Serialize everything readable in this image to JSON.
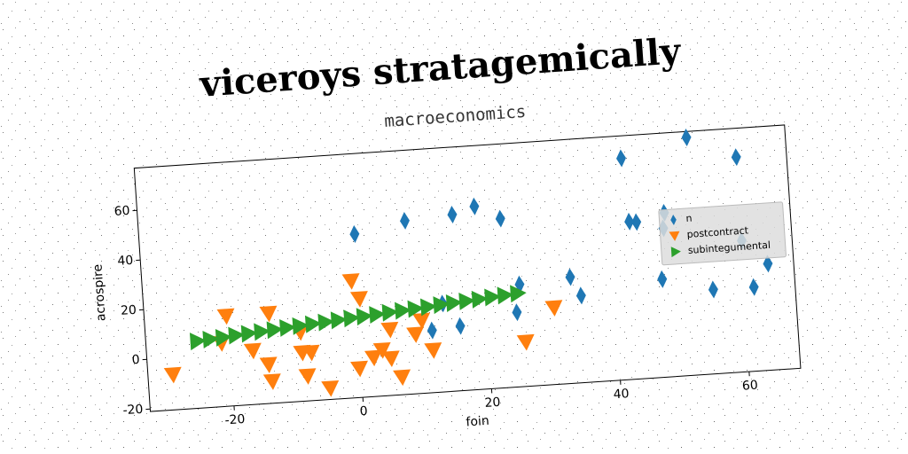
{
  "chart_data": {
    "type": "scatter",
    "title": "viceroys stratagemically",
    "subtitle": "macroeconomics",
    "xlabel": "foin",
    "ylabel": "acrospire",
    "xlim": [
      -33,
      68
    ],
    "ylim": [
      -21,
      77
    ],
    "xticks": [
      -20,
      0,
      20,
      40,
      60
    ],
    "yticks": [
      -20,
      0,
      20,
      40,
      60
    ],
    "grid": false,
    "legend": "center right",
    "series": [
      {
        "name": "n",
        "color": "#1f77b4",
        "marker": "diamond",
        "x": [
          0.4,
          8.3,
          15.7,
          19.2,
          23.1,
          25.4,
          24.7,
          15.8,
          11.4,
          13.3,
          33.3,
          34.8,
          42.4,
          52.7,
          60.2,
          43,
          44.1,
          48.5,
          48.2,
          47.5,
          55.3,
          60.2,
          61.6,
          64
        ],
        "values": [
          44.7,
          48.7,
          49.9,
          52.6,
          47,
          20.1,
          9,
          5,
          4,
          14.5,
          21.7,
          14,
          68,
          74.6,
          65.4,
          42.4,
          42,
          45,
          38.8,
          18.4,
          12.9,
          31.8,
          12.8,
          21.8
        ]
      },
      {
        "name": "postcontract",
        "color": "#ff7f0e",
        "marker": "triangle-down",
        "x": [
          -29.1,
          -20.3,
          -21.3,
          -16.5,
          -13.7,
          -14.2,
          -13.8,
          -9,
          -8.9,
          -8.3,
          -7.5,
          -4.9,
          -0.6,
          0.5,
          -0.2,
          2.1,
          3.5,
          4.9,
          4.8,
          6.3,
          8.8,
          9.9,
          11.4,
          25.8,
          30.5
        ],
        "values": [
          -6.8,
          15.3,
          4.6,
          0.7,
          15.2,
          -5.3,
          -12.1,
          6.9,
          -1.4,
          -10.9,
          -1.6,
          -16.4,
          26,
          18.7,
          -9.3,
          -5.3,
          -2.5,
          5.5,
          -6.1,
          -13.9,
          2.9,
          8.3,
          -3.9,
          -3.1,
          9.9
        ]
      },
      {
        "name": "subintegumental",
        "color": "#2ca02c",
        "marker": "triangle-right",
        "x": [
          -25,
          -23,
          -21,
          -19,
          -17,
          -15,
          -13,
          -11,
          -9,
          -7,
          -5,
          -3,
          -1,
          1,
          3,
          5,
          7,
          9,
          11,
          13,
          15,
          17,
          19,
          21,
          23,
          25
        ],
        "values": [
          6.0,
          6.4,
          6.8,
          7.3,
          7.7,
          8.1,
          8.5,
          9.0,
          9.4,
          9.8,
          10.2,
          10.7,
          11.1,
          11.5,
          11.9,
          12.4,
          12.8,
          13.2,
          13.6,
          14.1,
          14.5,
          14.9,
          15.3,
          15.8,
          16.2,
          16.6
        ]
      }
    ]
  }
}
